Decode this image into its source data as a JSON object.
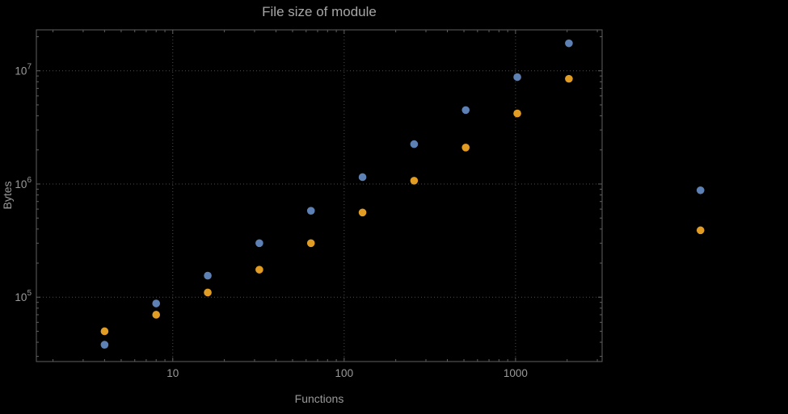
{
  "chart_data": {
    "type": "scatter",
    "title": "File size of module",
    "xlabel": "Functions",
    "ylabel": "Bytes",
    "x_scale": "log",
    "y_scale": "log",
    "xlim": [
      1.6,
      3200
    ],
    "ylim": [
      27000,
      23000000
    ],
    "x_ticks": [
      10,
      100,
      1000
    ],
    "x_tick_labels": [
      "10",
      "100",
      "1000"
    ],
    "y_ticks": [
      100000,
      1000000,
      10000000
    ],
    "y_tick_exponents": [
      "5",
      "6",
      "7"
    ],
    "grid": "dotted lines at decade ticks",
    "legend": "none",
    "x": [
      4,
      8,
      16,
      32,
      64,
      128,
      256,
      512,
      1024,
      2048,
      12000
    ],
    "series": [
      {
        "name": "blue",
        "color": "#5e81b5",
        "values": [
          38000,
          88000,
          155000,
          300000,
          580000,
          1150000,
          2250000,
          4500000,
          8800000,
          17500000,
          880000
        ]
      },
      {
        "name": "orange",
        "color": "#e19c24",
        "values": [
          50000,
          70000,
          110000,
          175000,
          300000,
          560000,
          1070000,
          2100000,
          4200000,
          8500000,
          390000
        ]
      }
    ],
    "colors": {
      "background": "#000000",
      "frame": "#606060",
      "grid": "#4d4d4d",
      "tick_label": "#9a9a9a",
      "title": "#a6a6a6"
    }
  }
}
